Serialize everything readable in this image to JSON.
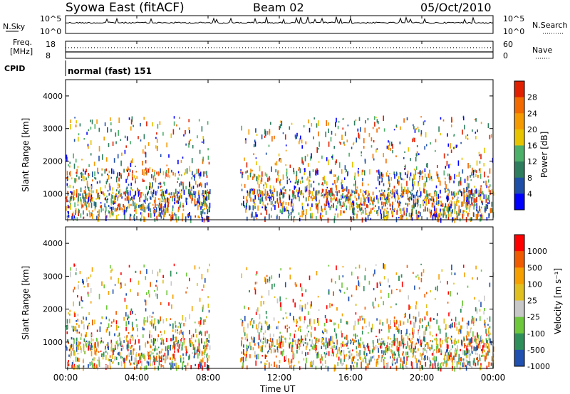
{
  "header": {
    "title": "Syowa East (fitACF)",
    "beam": "Beam 02",
    "date": "05/Oct/2010"
  },
  "noise_panel": {
    "left_label": "N.Sky",
    "left_ticks": [
      "10^5",
      "10^0"
    ],
    "right_label": "N.Search",
    "right_ticks": [
      "10^5",
      "10^0"
    ]
  },
  "freq_panel": {
    "left_label_1": "Freq.",
    "left_label_2": "[MHz]",
    "left_ticks": [
      "18",
      "8"
    ],
    "right_label": "Nave",
    "right_ticks": [
      "60",
      "0"
    ]
  },
  "cpid": {
    "label": "CPID",
    "value": "normal (fast) 151"
  },
  "colors": {
    "power_scale": [
      "#0000ff",
      "#1e4fa8",
      "#2e7d5e",
      "#4caf6a",
      "#e8c400",
      "#f59a00",
      "#f26a00",
      "#e02000"
    ],
    "velocity_scale": [
      "#ff0000",
      "#f05a00",
      "#f5a000",
      "#e0c020",
      "#c8c8c8",
      "#6ec83c",
      "#2f8f5a",
      "#2050b0"
    ]
  },
  "chart_data": [
    {
      "type": "heatmap",
      "panel": "power",
      "ylabel": "Slant Range [km]",
      "yticks": [
        "1000",
        "2000",
        "3000",
        "4000"
      ],
      "ylim": [
        200,
        4500
      ],
      "xlim": [
        "00:00",
        "24:00"
      ],
      "colorbar": {
        "label": "Power [dB]",
        "ticks": [
          "4",
          "8",
          "12",
          "16",
          "20",
          "24",
          "28"
        ]
      }
    },
    {
      "type": "heatmap",
      "panel": "velocity",
      "ylabel": "Slant Range [km]",
      "yticks": [
        "1000",
        "2000",
        "3000",
        "4000"
      ],
      "ylim": [
        200,
        4500
      ],
      "xlim": [
        "00:00",
        "24:00"
      ],
      "xlabel": "Time UT",
      "xticks": [
        "00:00",
        "04:00",
        "08:00",
        "12:00",
        "16:00",
        "20:00",
        "00:00"
      ],
      "colorbar": {
        "label": "Velocity [m s⁻¹]",
        "ticks": [
          "1000",
          "500",
          "100",
          "25",
          "-25",
          "-100",
          "-500",
          "-1000"
        ]
      }
    }
  ]
}
